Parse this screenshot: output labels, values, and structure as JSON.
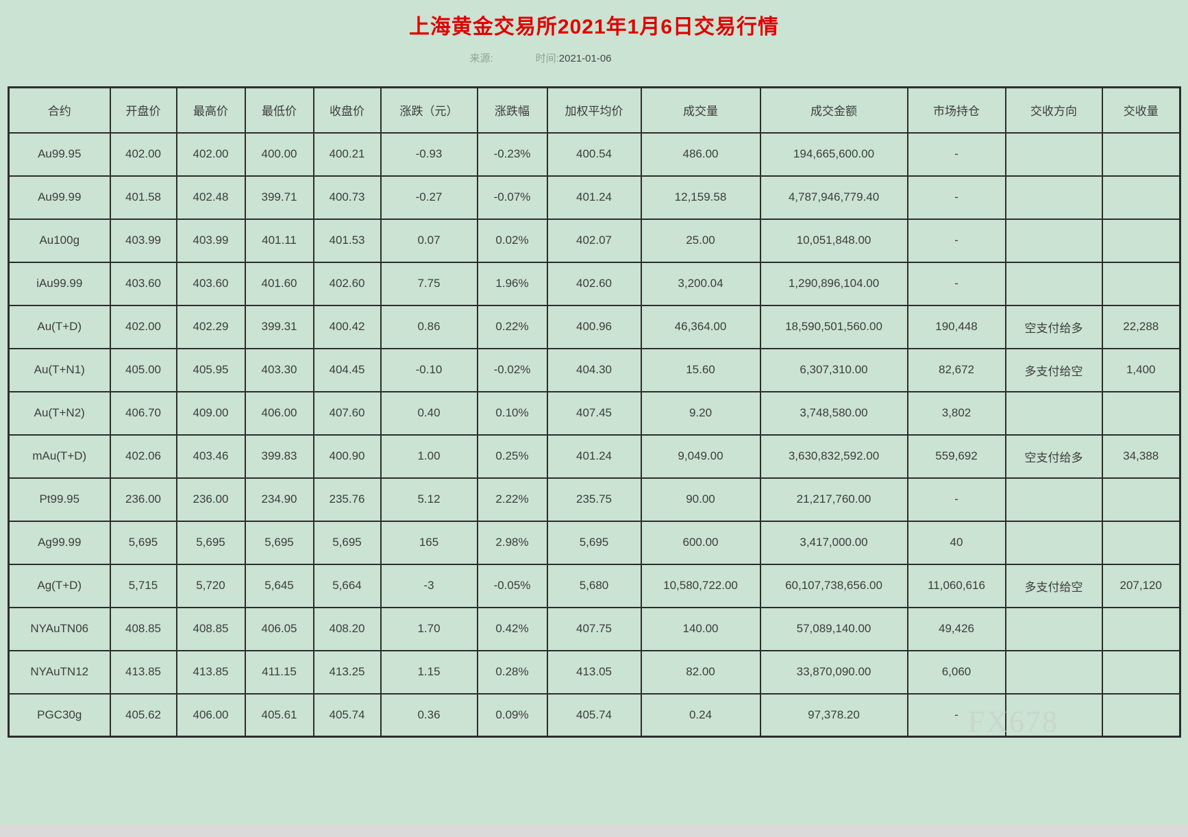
{
  "page": {
    "title": "上海黄金交易所2021年1月6日交易行情",
    "source_label": "来源:",
    "time_label": "时间:",
    "time_value": "2021-01-06",
    "watermark": "FX678"
  },
  "colors": {
    "background": "#cbe3d2",
    "title_red": "#e00000",
    "border": "#2d2d2d",
    "text": "#3d3d3d",
    "muted_label": "#8fa396"
  },
  "table": {
    "columns": [
      "合约",
      "开盘价",
      "最高价",
      "最低价",
      "收盘价",
      "涨跌（元）",
      "涨跌幅",
      "加权平均价",
      "成交量",
      "成交金额",
      "市场持仓",
      "交收方向",
      "交收量"
    ],
    "rows": [
      [
        "Au99.95",
        "402.00",
        "402.00",
        "400.00",
        "400.21",
        "-0.93",
        "-0.23%",
        "400.54",
        "486.00",
        "194,665,600.00",
        "-",
        "",
        ""
      ],
      [
        "Au99.99",
        "401.58",
        "402.48",
        "399.71",
        "400.73",
        "-0.27",
        "-0.07%",
        "401.24",
        "12,159.58",
        "4,787,946,779.40",
        "-",
        "",
        ""
      ],
      [
        "Au100g",
        "403.99",
        "403.99",
        "401.11",
        "401.53",
        "0.07",
        "0.02%",
        "402.07",
        "25.00",
        "10,051,848.00",
        "-",
        "",
        ""
      ],
      [
        "iAu99.99",
        "403.60",
        "403.60",
        "401.60",
        "402.60",
        "7.75",
        "1.96%",
        "402.60",
        "3,200.04",
        "1,290,896,104.00",
        "-",
        "",
        ""
      ],
      [
        "Au(T+D)",
        "402.00",
        "402.29",
        "399.31",
        "400.42",
        "0.86",
        "0.22%",
        "400.96",
        "46,364.00",
        "18,590,501,560.00",
        "190,448",
        "空支付给多",
        "22,288"
      ],
      [
        "Au(T+N1)",
        "405.00",
        "405.95",
        "403.30",
        "404.45",
        "-0.10",
        "-0.02%",
        "404.30",
        "15.60",
        "6,307,310.00",
        "82,672",
        "多支付给空",
        "1,400"
      ],
      [
        "Au(T+N2)",
        "406.70",
        "409.00",
        "406.00",
        "407.60",
        "0.40",
        "0.10%",
        "407.45",
        "9.20",
        "3,748,580.00",
        "3,802",
        "",
        ""
      ],
      [
        "mAu(T+D)",
        "402.06",
        "403.46",
        "399.83",
        "400.90",
        "1.00",
        "0.25%",
        "401.24",
        "9,049.00",
        "3,630,832,592.00",
        "559,692",
        "空支付给多",
        "34,388"
      ],
      [
        "Pt99.95",
        "236.00",
        "236.00",
        "234.90",
        "235.76",
        "5.12",
        "2.22%",
        "235.75",
        "90.00",
        "21,217,760.00",
        "-",
        "",
        ""
      ],
      [
        "Ag99.99",
        "5,695",
        "5,695",
        "5,695",
        "5,695",
        "165",
        "2.98%",
        "5,695",
        "600.00",
        "3,417,000.00",
        "40",
        "",
        ""
      ],
      [
        "Ag(T+D)",
        "5,715",
        "5,720",
        "5,645",
        "5,664",
        "-3",
        "-0.05%",
        "5,680",
        "10,580,722.00",
        "60,107,738,656.00",
        "11,060,616",
        "多支付给空",
        "207,120"
      ],
      [
        "NYAuTN06",
        "408.85",
        "408.85",
        "406.05",
        "408.20",
        "1.70",
        "0.42%",
        "407.75",
        "140.00",
        "57,089,140.00",
        "49,426",
        "",
        ""
      ],
      [
        "NYAuTN12",
        "413.85",
        "413.85",
        "411.15",
        "413.25",
        "1.15",
        "0.28%",
        "413.05",
        "82.00",
        "33,870,090.00",
        "6,060",
        "",
        ""
      ],
      [
        "PGC30g",
        "405.62",
        "406.00",
        "405.61",
        "405.74",
        "0.36",
        "0.09%",
        "405.74",
        "0.24",
        "97,378.20",
        "-",
        "",
        ""
      ]
    ]
  }
}
